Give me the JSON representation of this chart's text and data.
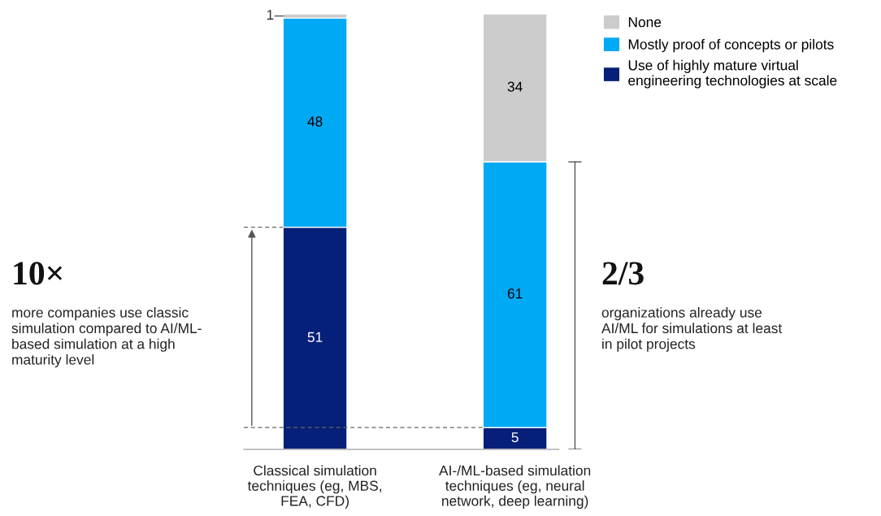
{
  "chart_data": {
    "type": "bar",
    "stacked": true,
    "data_labels": true,
    "legend": "top right",
    "grid": false,
    "tick_labels": "x",
    "categories": [
      "Classical simulation\ntechniques (eg, MBS,\nFEA, CFD)",
      "AI-/ML-based simulation\ntechniques (eg, neural\nnetwork, deep learning)"
    ],
    "series": [
      {
        "name": "Use of highly mature virtual\nengineering technologies at scale",
        "color": "#061f78",
        "values": [
          51,
          5
        ]
      },
      {
        "name": "Mostly proof of concepts or pilots",
        "color": "#00a9f4",
        "values": [
          48,
          61
        ]
      },
      {
        "name": "None",
        "color": "#cccccc",
        "values": [
          1,
          34
        ]
      }
    ],
    "ref_lines": [
      {
        "axis": "y",
        "value": 51,
        "color": "#666666",
        "line_style": "dashed"
      },
      {
        "axis": "y",
        "value": 5,
        "color": "#666666",
        "line_style": "dashed"
      }
    ],
    "annotations": [
      "10×",
      "more companies use classic\nsimulation compared to AI/ML-\nbased simulation at a high\nmaturity level",
      "2/3",
      "organizations already use\nAI/ML for simulations at least\nin pilot projects"
    ]
  }
}
